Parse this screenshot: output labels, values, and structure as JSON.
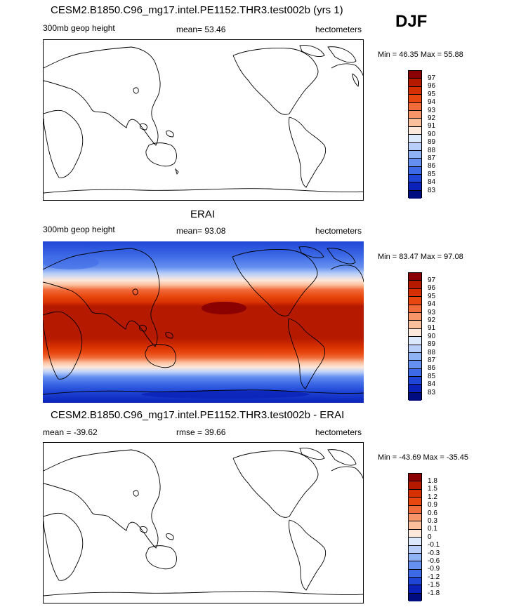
{
  "season": "DJF",
  "panels": [
    {
      "title": "CESM2.B1850.C96_mg17.intel.PE1152.THR3.test002b (yrs 1)",
      "left_label": "300mb geop height",
      "center_label": "mean=  53.46",
      "right_label": "hectometers",
      "minmax": "Min =  46.35 Max =  55.88",
      "colorbar_labels": [
        "97",
        "96",
        "95",
        "94",
        "93",
        "92",
        "91",
        "90",
        "89",
        "88",
        "87",
        "86",
        "85",
        "84",
        "83"
      ],
      "filled": false
    },
    {
      "title": "ERAI",
      "left_label": "300mb geop height",
      "center_label": "mean=  93.08",
      "right_label": "hectometers",
      "minmax": "Min =  83.47 Max =  97.08",
      "colorbar_labels": [
        "97",
        "96",
        "95",
        "94",
        "93",
        "92",
        "91",
        "90",
        "89",
        "88",
        "87",
        "86",
        "85",
        "84",
        "83"
      ],
      "filled": true
    },
    {
      "title": "CESM2.B1850.C96_mg17.intel.PE1152.THR3.test002b - ERAI",
      "left_label": "mean = -39.62",
      "center_label": "rmse =  39.66",
      "right_label": "hectometers",
      "minmax": "Min = -43.69 Max = -35.45",
      "colorbar_labels": [
        "1.8",
        "1.5",
        "1.2",
        "0.9",
        "0.6",
        "0.3",
        "0.1",
        "0",
        "-0.1",
        "-0.3",
        "-0.6",
        "-0.9",
        "-1.2",
        "-1.5",
        "-1.8"
      ],
      "filled": false
    }
  ],
  "colors": {
    "scale": [
      "#8b0000",
      "#b51a00",
      "#d62f00",
      "#e8480f",
      "#f26b3a",
      "#f79468",
      "#fbbf9c",
      "#fde8dc",
      "#dce8fc",
      "#b8cffa",
      "#8fb2f5",
      "#6690ef",
      "#3d6ae6",
      "#1f45d6",
      "#0a22b8",
      "#000c80"
    ]
  }
}
